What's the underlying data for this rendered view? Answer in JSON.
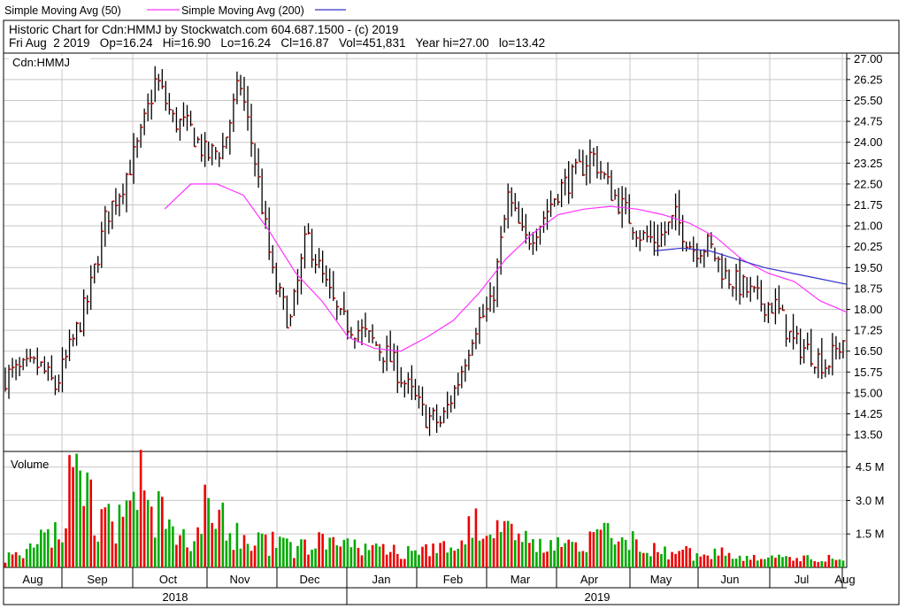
{
  "legend": {
    "sma50_label": "Simple Moving Avg (50)",
    "sma200_label": "Simple Moving Avg (200)"
  },
  "header": {
    "line1": "Historic Chart for Cdn:HMMJ by Stockwatch.com 604.687.1500 - (c) 2019",
    "line2": "Fri Aug  2 2019   Op=16.24   Hi=16.90   Lo=16.24   Cl=16.87   Vol=451,831   Year hi=27.00   lo=13.42"
  },
  "colors": {
    "sma50": "#ff33ff",
    "sma200": "#3333cc",
    "up": "#00aa00",
    "down": "#ee0000",
    "price_bar": "#000000",
    "close_tick": "#cc0000",
    "grid": "#c8c8c8"
  },
  "chart_data": [
    {
      "type": "ohlc",
      "symbol_label": "Cdn:HMMJ",
      "y_ticks": [
        "27.00",
        "26.25",
        "25.50",
        "24.75",
        "24.00",
        "23.25",
        "22.50",
        "21.75",
        "21.00",
        "20.25",
        "19.50",
        "18.75",
        "18.00",
        "17.25",
        "16.50",
        "15.75",
        "15.00",
        "14.25",
        "13.50"
      ],
      "ylim": [
        12.9,
        27.2
      ],
      "x_months": [
        "Aug",
        "Sep",
        "Oct",
        "Nov",
        "Dec",
        "Jan",
        "Feb",
        "Mar",
        "Apr",
        "May",
        "Jun",
        "Jul",
        "Aug"
      ],
      "x_years": [
        "2018",
        "2019"
      ],
      "last_bar": {
        "date": "Fri Aug 2 2019",
        "open": 16.24,
        "high": 16.9,
        "low": 16.24,
        "close": 16.87
      },
      "year_high": 27.0,
      "year_low": 13.42,
      "close_series_weekly": [
        15.6,
        15.8,
        16.0,
        15.2,
        16.8,
        18.5,
        21.3,
        22.5,
        24.0,
        26.3,
        24.8,
        24.5,
        23.5,
        23.8,
        26.2,
        23.0,
        19.0,
        17.5,
        20.7,
        19.0,
        17.6,
        17.3,
        16.8,
        16.2,
        15.2,
        14.2,
        13.9,
        15.4,
        17.4,
        18.1,
        22.0,
        20.4,
        21.2,
        22.3,
        22.8,
        23.6,
        22.4,
        21.5,
        20.6,
        20.5,
        21.3,
        20.2,
        20.3,
        19.2,
        18.8,
        18.3,
        18.1,
        16.8,
        16.5,
        16.0,
        16.87
      ],
      "series": [
        {
          "name": "Simple Moving Avg (50)",
          "close_weekly_from_oct": [
            21.6,
            22.5,
            22.5,
            22.1,
            20.8,
            19.3,
            18.3,
            17.0,
            16.6,
            16.5,
            17.0,
            17.6,
            18.6,
            19.8,
            20.7,
            21.4,
            21.6,
            21.7,
            21.6,
            21.4,
            21.1,
            20.6,
            19.8,
            19.3,
            19.0,
            18.3,
            17.9
          ]
        },
        {
          "name": "Simple Moving Avg (200)",
          "close_weekly_from_may": [
            20.1,
            20.2,
            20.1,
            19.8,
            19.5,
            19.3,
            19.1,
            18.9
          ]
        }
      ]
    },
    {
      "type": "bar",
      "title": "Volume",
      "y_ticks": [
        "4.5 M",
        "3.0 M",
        "1.5 M"
      ],
      "ylim": [
        0,
        5.2
      ],
      "unit": "M",
      "values_weekly": [
        0.6,
        0.8,
        1.5,
        2.0,
        4.8,
        3.6,
        2.8,
        2.4,
        5.2,
        3.0,
        2.2,
        1.8,
        4.2,
        2.9,
        1.8,
        1.3,
        1.5,
        1.0,
        1.1,
        1.6,
        1.3,
        1.0,
        1.1,
        1.2,
        0.8,
        0.9,
        1.0,
        1.6,
        2.3,
        1.8,
        2.6,
        1.4,
        1.4,
        1.2,
        1.3,
        1.6,
        2.4,
        1.5,
        1.3,
        1.0,
        0.9,
        0.8,
        0.7,
        0.8,
        0.6,
        0.6,
        0.5,
        0.4,
        0.5,
        0.5,
        0.45
      ]
    }
  ]
}
